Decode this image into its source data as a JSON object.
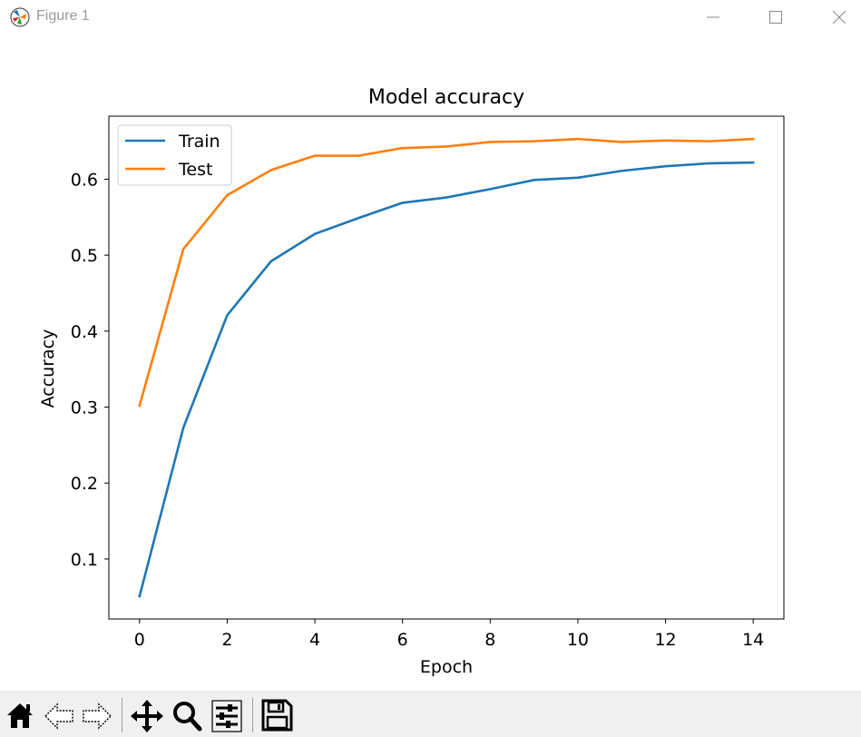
{
  "window": {
    "title": "Figure 1",
    "icons": [
      "app-icon",
      "minimize-icon",
      "maximize-icon",
      "close-icon"
    ]
  },
  "toolbar": {
    "buttons": [
      {
        "name": "home",
        "icon": "home-icon"
      },
      {
        "name": "back",
        "icon": "arrow-left-icon"
      },
      {
        "name": "forward",
        "icon": "arrow-right-icon"
      },
      {
        "name": "pan",
        "icon": "move-icon"
      },
      {
        "name": "zoom",
        "icon": "magnifier-icon"
      },
      {
        "name": "configure-subplots",
        "icon": "sliders-icon"
      },
      {
        "name": "save",
        "icon": "floppy-disk-icon"
      }
    ]
  },
  "chart_data": {
    "type": "line",
    "title": "Model accuracy",
    "xlabel": "Epoch",
    "ylabel": "Accuracy",
    "xlim": [
      -0.7,
      14.7
    ],
    "ylim": [
      0.021,
      0.683
    ],
    "xticks": [
      0,
      2,
      4,
      6,
      8,
      10,
      12,
      14
    ],
    "xtick_labels": [
      "0",
      "2",
      "4",
      "6",
      "8",
      "10",
      "12",
      "14"
    ],
    "yticks": [
      0.1,
      0.2,
      0.3,
      0.4,
      0.5,
      0.6
    ],
    "ytick_labels": [
      "0.1",
      "0.2",
      "0.3",
      "0.4",
      "0.5",
      "0.6"
    ],
    "grid": false,
    "legend": "top-left",
    "x": [
      0,
      1,
      2,
      3,
      4,
      5,
      6,
      7,
      8,
      9,
      10,
      11,
      12,
      13,
      14
    ],
    "series": [
      {
        "name": "Train",
        "color": "#1f77b4",
        "values": [
          0.051,
          0.273,
          0.421,
          0.492,
          0.528,
          0.549,
          0.569,
          0.576,
          0.587,
          0.599,
          0.602,
          0.611,
          0.617,
          0.621,
          0.622
        ]
      },
      {
        "name": "Test",
        "color": "#ff7f0e",
        "values": [
          0.302,
          0.508,
          0.579,
          0.612,
          0.631,
          0.631,
          0.641,
          0.643,
          0.649,
          0.65,
          0.653,
          0.649,
          0.651,
          0.65,
          0.653
        ]
      }
    ]
  }
}
